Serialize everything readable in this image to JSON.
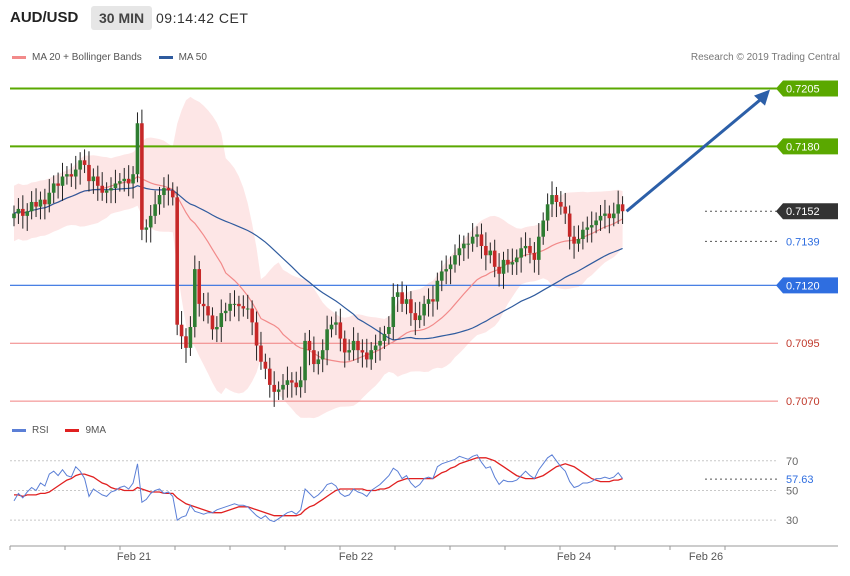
{
  "header": {
    "pair": "AUD/USD",
    "timeframe": "30 MIN",
    "time": "09:14:42 CET"
  },
  "legend": {
    "items": [
      {
        "label": "MA 20 + Bollinger Bands",
        "color": "#f28a8a"
      },
      {
        "label": "MA 50",
        "color": "#2f5b9e"
      }
    ],
    "copyright": "Research © 2019 Trading Central"
  },
  "rsi_legend": {
    "items": [
      {
        "label": "RSI",
        "color": "#5b7fd6"
      },
      {
        "label": "9MA",
        "color": "#e02020"
      }
    ]
  },
  "colors": {
    "bull_candle": "#2e7d32",
    "bear_candle": "#c62828",
    "green_level": "#5aa800",
    "blue_level": "#2f6ee0",
    "red_level": "#f08080",
    "arrow": "#2c5fa8",
    "band_fill": "#fde2e2"
  },
  "chart_data": [
    {
      "type": "candlestick",
      "title": "AUD/USD 30 MIN",
      "ylim": [
        0.7064,
        0.7213
      ],
      "x_ticks": [
        "Feb 21",
        "Feb 22",
        "Feb 24",
        "Feb 26"
      ],
      "levels": [
        {
          "value": "0.7205",
          "kind": "resistance",
          "color": "green"
        },
        {
          "value": "0.7180",
          "kind": "resistance",
          "color": "green"
        },
        {
          "value": "0.7152",
          "kind": "last_price",
          "color": "dark"
        },
        {
          "value": "0.7139",
          "kind": "ma_level",
          "color": "blue_text"
        },
        {
          "value": "0.7120",
          "kind": "pivot",
          "color": "blue"
        },
        {
          "value": "0.7095",
          "kind": "support",
          "color": "red"
        },
        {
          "value": "0.7070",
          "kind": "support",
          "color": "red"
        }
      ],
      "closes": [
        0.7151,
        0.7153,
        0.715,
        0.7152,
        0.7156,
        0.7154,
        0.7157,
        0.7155,
        0.716,
        0.7164,
        0.7163,
        0.7167,
        0.7168,
        0.7167,
        0.717,
        0.7174,
        0.7172,
        0.7165,
        0.7167,
        0.7163,
        0.716,
        0.7161,
        0.7162,
        0.7164,
        0.7165,
        0.7166,
        0.7164,
        0.7168,
        0.719,
        0.7144,
        0.7145,
        0.715,
        0.7155,
        0.7159,
        0.7162,
        0.7161,
        0.7158,
        0.7103,
        0.7098,
        0.7093,
        0.7102,
        0.7127,
        0.7112,
        0.7111,
        0.7107,
        0.7101,
        0.7102,
        0.7108,
        0.7109,
        0.7112,
        0.7112,
        0.7111,
        0.711,
        0.711,
        0.7104,
        0.7094,
        0.7087,
        0.7084,
        0.7077,
        0.7074,
        0.7075,
        0.7077,
        0.7079,
        0.7078,
        0.7076,
        0.7079,
        0.7096,
        0.7092,
        0.7086,
        0.7088,
        0.7092,
        0.7101,
        0.7103,
        0.7104,
        0.7097,
        0.7091,
        0.7092,
        0.7096,
        0.7092,
        0.7091,
        0.7088,
        0.7092,
        0.7094,
        0.7096,
        0.7099,
        0.7102,
        0.7115,
        0.7117,
        0.7112,
        0.7114,
        0.7108,
        0.7105,
        0.7107,
        0.7112,
        0.7114,
        0.7113,
        0.7122,
        0.7126,
        0.7127,
        0.7129,
        0.7133,
        0.7136,
        0.7138,
        0.7138,
        0.7141,
        0.7142,
        0.7137,
        0.7133,
        0.7135,
        0.7128,
        0.7125,
        0.7131,
        0.7129,
        0.713,
        0.7132,
        0.7136,
        0.7137,
        0.7134,
        0.7131,
        0.7141,
        0.7148,
        0.7155,
        0.7159,
        0.7156,
        0.7154,
        0.7151,
        0.7141,
        0.7138,
        0.714,
        0.7144,
        0.7145,
        0.7146,
        0.7148,
        0.715,
        0.7151,
        0.7149,
        0.7151,
        0.7155,
        0.7152
      ]
    },
    {
      "type": "line",
      "title": "RSI",
      "ylim": [
        20,
        84
      ],
      "y_ticks": [
        "70",
        "50",
        "30"
      ],
      "last_value": "57.63",
      "series": [
        {
          "name": "RSI",
          "values": [
            43,
            48,
            45,
            49,
            52,
            50,
            55,
            53,
            61,
            63,
            60,
            64,
            60,
            59,
            66,
            63,
            58,
            46,
            51,
            49,
            47,
            46,
            49,
            50,
            52,
            53,
            51,
            55,
            68,
            42,
            44,
            48,
            50,
            51,
            48,
            49,
            46,
            30,
            32,
            33,
            40,
            36,
            35,
            34,
            35,
            35,
            37,
            38,
            39,
            40,
            41,
            40,
            40,
            39,
            36,
            33,
            31,
            33,
            30,
            29,
            31,
            33,
            35,
            36,
            34,
            37,
            51,
            48,
            45,
            47,
            50,
            54,
            55,
            53,
            48,
            46,
            47,
            51,
            49,
            48,
            46,
            50,
            52,
            54,
            57,
            60,
            65,
            63,
            58,
            60,
            55,
            52,
            54,
            58,
            59,
            58,
            66,
            68,
            69,
            70,
            71,
            73,
            72,
            71,
            73,
            74,
            69,
            65,
            66,
            59,
            54,
            57,
            56,
            56,
            57,
            60,
            63,
            60,
            58,
            64,
            68,
            72,
            74,
            70,
            66,
            63,
            56,
            52,
            53,
            55,
            55,
            56,
            58,
            58,
            59,
            58,
            59,
            62,
            58
          ]
        },
        {
          "name": "9MA",
          "values": [
            47,
            47,
            46,
            47,
            47,
            47,
            48,
            48,
            49,
            51,
            53,
            55,
            57,
            58,
            60,
            61,
            61,
            60,
            59,
            57,
            55,
            54,
            52,
            51,
            51,
            50,
            50,
            50,
            52,
            51,
            50,
            49,
            49,
            49,
            48,
            48,
            48,
            45,
            43,
            41,
            40,
            39,
            38,
            37,
            36,
            35,
            35,
            35,
            36,
            37,
            38,
            39,
            39,
            39,
            38,
            37,
            36,
            35,
            34,
            33,
            33,
            33,
            33,
            33,
            33,
            34,
            37,
            39,
            40,
            42,
            44,
            46,
            48,
            50,
            51,
            51,
            51,
            51,
            51,
            51,
            50,
            50,
            50,
            51,
            51,
            52,
            54,
            56,
            57,
            58,
            58,
            58,
            58,
            58,
            58,
            58,
            60,
            62,
            63,
            65,
            66,
            68,
            69,
            70,
            71,
            72,
            72,
            72,
            71,
            70,
            68,
            66,
            64,
            62,
            60,
            59,
            58,
            58,
            58,
            59,
            60,
            62,
            64,
            66,
            67,
            68,
            67,
            66,
            64,
            62,
            60,
            58,
            57,
            56,
            56,
            56,
            57,
            57,
            58
          ]
        }
      ]
    }
  ]
}
